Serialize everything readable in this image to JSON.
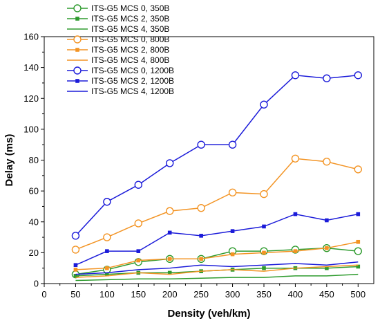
{
  "chart_data": {
    "type": "line",
    "xlabel": "Density (veh/km)",
    "ylabel": "Delay (ms)",
    "xlim": [
      0,
      525
    ],
    "ylim": [
      0,
      160
    ],
    "xticks": [
      0,
      50,
      100,
      150,
      200,
      250,
      300,
      350,
      400,
      450,
      500
    ],
    "yticks": [
      0,
      20,
      40,
      60,
      80,
      100,
      120,
      140,
      160
    ],
    "grid": false,
    "legend_position": "top-left",
    "x": [
      50,
      100,
      150,
      200,
      250,
      300,
      350,
      400,
      450,
      500
    ],
    "series": [
      {
        "name": "ITS-G5 MCS 0, 350B",
        "color": "#2e9b2e",
        "marker": "open-circle",
        "values": [
          6,
          9,
          14,
          16,
          16,
          21,
          21,
          22,
          23,
          21
        ]
      },
      {
        "name": "ITS-G5 MCS 2, 350B",
        "color": "#2e9b2e",
        "marker": "filled-square",
        "values": [
          5,
          6,
          7,
          7,
          8,
          9,
          10,
          10,
          10,
          11
        ]
      },
      {
        "name": "ITS-G5 MCS 4, 350B",
        "color": "#2e9b2e",
        "marker": "none",
        "values": [
          2,
          2.5,
          3,
          3,
          3.5,
          4,
          4,
          5,
          5,
          6
        ]
      },
      {
        "name": "ITS-G5 MCS 0, 800B",
        "color": "#f39424",
        "marker": "open-circle",
        "values": [
          22,
          30,
          39,
          47,
          49,
          59,
          58,
          81,
          79,
          74
        ]
      },
      {
        "name": "ITS-G5 MCS 2, 800B",
        "color": "#f39424",
        "marker": "filled-square",
        "values": [
          9,
          10,
          15,
          16,
          16,
          19,
          20,
          21,
          23,
          27
        ]
      },
      {
        "name": "ITS-G5 MCS 4, 800B",
        "color": "#f39424",
        "marker": "none",
        "values": [
          4,
          5,
          7,
          6,
          8,
          9,
          8,
          10,
          11,
          12
        ]
      },
      {
        "name": "ITS-G5 MCS 0, 1200B",
        "color": "#1b1bd9",
        "marker": "open-circle",
        "values": [
          31,
          53,
          64,
          78,
          90,
          90,
          116,
          135,
          133,
          135
        ]
      },
      {
        "name": "ITS-G5 MCS 2, 1200B",
        "color": "#1b1bd9",
        "marker": "filled-square",
        "values": [
          12,
          21,
          21,
          33,
          31,
          34,
          37,
          45,
          41,
          45
        ]
      },
      {
        "name": "ITS-G5 MCS 4, 1200B",
        "color": "#1b1bd9",
        "marker": "none",
        "values": [
          6,
          7,
          9,
          10,
          12,
          11,
          12,
          13,
          12,
          14
        ]
      }
    ]
  }
}
